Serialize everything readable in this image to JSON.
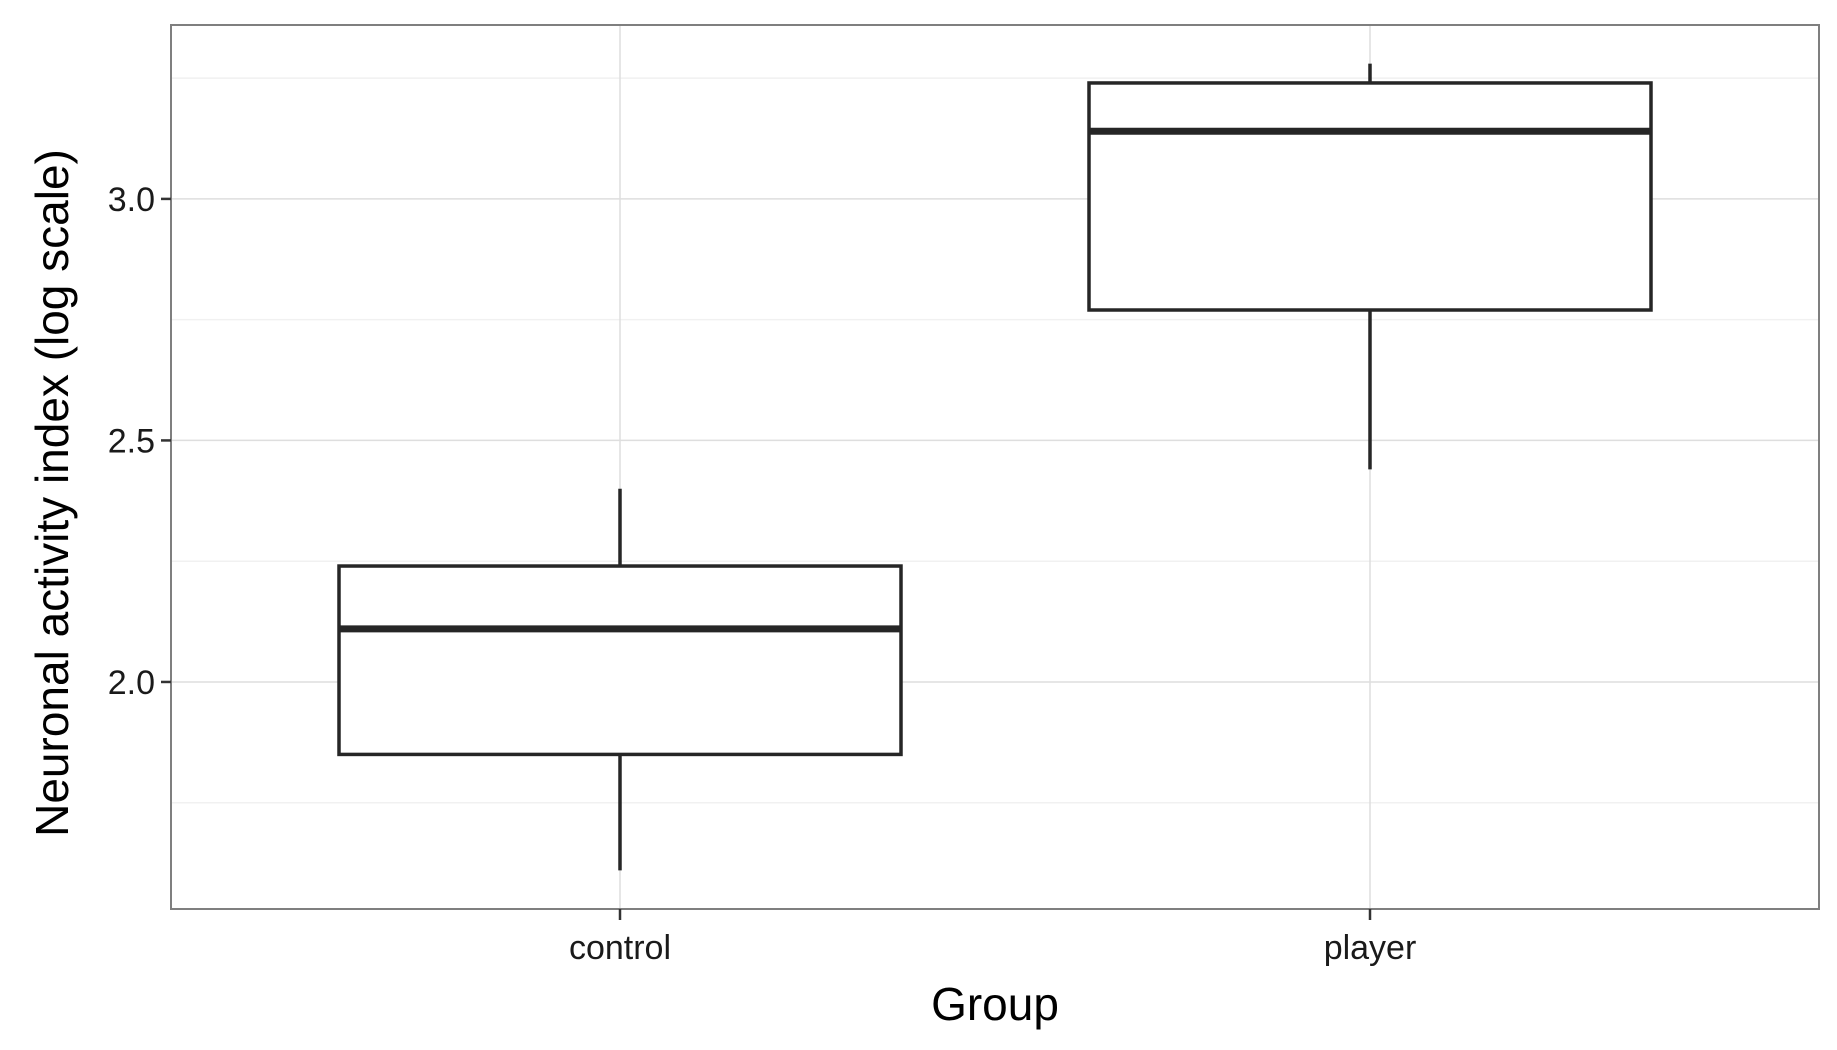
{
  "chart_data": {
    "type": "boxplot",
    "xlabel": "Group",
    "ylabel": "Neuronal activity index (log scale)",
    "ylim": [
      1.53,
      3.36
    ],
    "y_ticks": [
      "2.0",
      "2.5",
      "3.0"
    ],
    "y_tick_values": [
      2.0,
      2.5,
      3.0
    ],
    "y_minor_ticks": [
      1.75,
      2.25,
      2.75,
      3.25
    ],
    "grid": true,
    "categories": [
      "control",
      "player"
    ],
    "boxes": [
      {
        "group": "control",
        "whisker_low": 1.61,
        "q1": 1.85,
        "median": 2.11,
        "q3": 2.24,
        "whisker_high": 2.4
      },
      {
        "group": "player",
        "whisker_low": 2.44,
        "q1": 2.77,
        "median": 3.14,
        "q3": 3.24,
        "whisker_high": 3.28
      }
    ],
    "colors": {
      "panel_border": "#7f7f7f",
      "grid_major": "#dedede",
      "grid_minor": "#f1f1f1",
      "box_stroke": "#262626",
      "box_fill": "#ffffff"
    }
  }
}
